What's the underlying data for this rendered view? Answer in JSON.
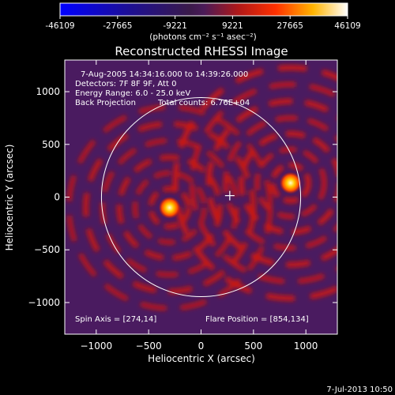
{
  "colorbar": {
    "tick_labels": [
      "-46109",
      "-27665",
      "-9221",
      "9221",
      "27665",
      "46109"
    ],
    "unit_label": "(photons cm⁻² s⁻¹ asec⁻²)",
    "range": [
      -46109,
      46109
    ]
  },
  "chart_data": {
    "type": "heatmap",
    "title": "Reconstructed RHESSI Image",
    "xlabel": "Heliocentric X (arcsec)",
    "ylabel": "Heliocentric Y (arcsec)",
    "xlim": [
      -1300,
      1300
    ],
    "ylim": [
      -1300,
      1300
    ],
    "x_ticks": [
      -1000,
      -500,
      0,
      500,
      1000
    ],
    "y_ticks": [
      -1000,
      -500,
      0,
      500,
      1000
    ],
    "x_tick_labels": [
      "−1000",
      "−500",
      "0",
      "500",
      "1000"
    ],
    "y_tick_labels": [
      "−1000",
      "−500",
      "0",
      "500",
      "1000"
    ],
    "sources": [
      {
        "x": -300,
        "y": -100,
        "brightness": "high"
      },
      {
        "x": 854,
        "y": 134,
        "brightness": "high"
      }
    ],
    "solar_disk": {
      "center": [
        0,
        0
      ],
      "radius_arcsec": 950
    },
    "spin_axis_marker": [
      274,
      14
    ],
    "annotations": {
      "time_range": "7-Aug-2005 14:34:16.000 to 14:39:26.000",
      "detectors": "Detectors: 7F 8F 9F, Att 0",
      "energy": "Energy Range: 6.0 - 25.0 keV",
      "method": "Back Projection",
      "counts": "Total counts: 6.76E+04",
      "spin_axis": "Spin Axis = [274,14]",
      "flare_position": "Flare Position = [854,134]"
    }
  },
  "footer": {
    "date": "7-Jul-2013 10:50"
  }
}
